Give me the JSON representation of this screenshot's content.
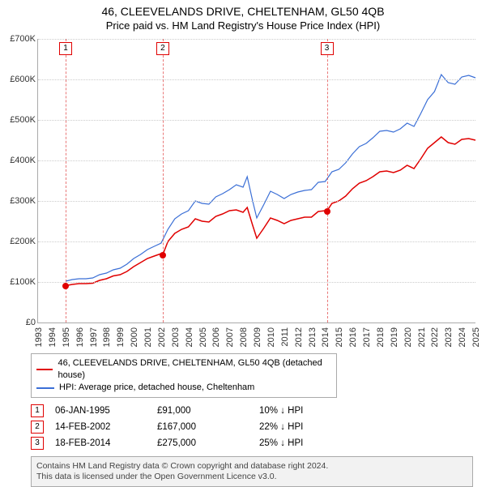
{
  "titles": {
    "line1": "46, CLEEVELANDS DRIVE, CHELTENHAM, GL50 4QB",
    "line2": "Price paid vs. HM Land Registry's House Price Index (HPI)"
  },
  "chart": {
    "type": "line",
    "background_color": "#ffffff",
    "grid_color": "#cccccc",
    "axis_color": "#aaaaaa",
    "title_fontsize": 14,
    "subtitle_fontsize": 13,
    "tick_fontsize": 11,
    "x": {
      "min": 1993,
      "max": 2025,
      "ticks": [
        1993,
        1994,
        1995,
        1996,
        1997,
        1998,
        1999,
        2000,
        2001,
        2002,
        2003,
        2004,
        2005,
        2006,
        2007,
        2008,
        2009,
        2010,
        2011,
        2012,
        2013,
        2014,
        2015,
        2016,
        2017,
        2018,
        2019,
        2020,
        2021,
        2022,
        2023,
        2024,
        2025
      ]
    },
    "y": {
      "min": 0,
      "max": 700,
      "unit_prefix": "£",
      "unit_suffix": "K",
      "ticks": [
        0,
        100,
        200,
        300,
        400,
        500,
        600,
        700
      ]
    },
    "series": [
      {
        "name": "property",
        "label": "46, CLEEVELANDS DRIVE, CHELTENHAM, GL50 4QB (detached house)",
        "color": "#e00000",
        "width": 1.5,
        "data": [
          [
            1995.02,
            91
          ],
          [
            1995.5,
            94
          ],
          [
            1996,
            96
          ],
          [
            1996.5,
            96
          ],
          [
            1997,
            97
          ],
          [
            1997.5,
            104
          ],
          [
            1998,
            108
          ],
          [
            1998.5,
            115
          ],
          [
            1999,
            118
          ],
          [
            1999.5,
            126
          ],
          [
            2000,
            138
          ],
          [
            2000.5,
            148
          ],
          [
            2001,
            158
          ],
          [
            2001.5,
            164
          ],
          [
            2002,
            170
          ],
          [
            2002.12,
            167
          ],
          [
            2002.5,
            200
          ],
          [
            2003,
            220
          ],
          [
            2003.5,
            230
          ],
          [
            2004,
            236
          ],
          [
            2004.5,
            256
          ],
          [
            2005,
            250
          ],
          [
            2005.5,
            248
          ],
          [
            2006,
            262
          ],
          [
            2006.5,
            268
          ],
          [
            2007,
            276
          ],
          [
            2007.5,
            278
          ],
          [
            2008,
            272
          ],
          [
            2008.3,
            284
          ],
          [
            2008.7,
            240
          ],
          [
            2009,
            208
          ],
          [
            2009.5,
            232
          ],
          [
            2010,
            258
          ],
          [
            2010.5,
            252
          ],
          [
            2011,
            244
          ],
          [
            2011.5,
            252
          ],
          [
            2012,
            256
          ],
          [
            2012.5,
            260
          ],
          [
            2013,
            260
          ],
          [
            2013.5,
            274
          ],
          [
            2014,
            276
          ],
          [
            2014.13,
            275
          ],
          [
            2014.5,
            294
          ],
          [
            2015,
            300
          ],
          [
            2015.5,
            312
          ],
          [
            2016,
            330
          ],
          [
            2016.5,
            344
          ],
          [
            2017,
            350
          ],
          [
            2017.5,
            360
          ],
          [
            2018,
            372
          ],
          [
            2018.5,
            374
          ],
          [
            2019,
            370
          ],
          [
            2019.5,
            376
          ],
          [
            2020,
            388
          ],
          [
            2020.5,
            380
          ],
          [
            2021,
            404
          ],
          [
            2021.5,
            430
          ],
          [
            2022,
            444
          ],
          [
            2022.5,
            458
          ],
          [
            2023,
            444
          ],
          [
            2023.5,
            440
          ],
          [
            2024,
            452
          ],
          [
            2024.5,
            454
          ],
          [
            2025,
            450
          ]
        ]
      },
      {
        "name": "hpi",
        "label": "HPI: Average price, detached house, Cheltenham",
        "color": "#3b6fd6",
        "width": 1.2,
        "data": [
          [
            1995.02,
            102
          ],
          [
            1995.5,
            106
          ],
          [
            1996,
            108
          ],
          [
            1996.5,
            108
          ],
          [
            1997,
            110
          ],
          [
            1997.5,
            118
          ],
          [
            1998,
            122
          ],
          [
            1998.5,
            130
          ],
          [
            1999,
            134
          ],
          [
            1999.5,
            144
          ],
          [
            2000,
            158
          ],
          [
            2000.5,
            168
          ],
          [
            2001,
            180
          ],
          [
            2001.5,
            188
          ],
          [
            2002,
            196
          ],
          [
            2002.5,
            230
          ],
          [
            2003,
            256
          ],
          [
            2003.5,
            268
          ],
          [
            2004,
            276
          ],
          [
            2004.5,
            300
          ],
          [
            2005,
            294
          ],
          [
            2005.5,
            292
          ],
          [
            2006,
            310
          ],
          [
            2006.5,
            318
          ],
          [
            2007,
            328
          ],
          [
            2007.5,
            340
          ],
          [
            2008,
            334
          ],
          [
            2008.3,
            360
          ],
          [
            2008.7,
            300
          ],
          [
            2009,
            258
          ],
          [
            2009.5,
            290
          ],
          [
            2010,
            324
          ],
          [
            2010.5,
            316
          ],
          [
            2011,
            306
          ],
          [
            2011.5,
            316
          ],
          [
            2012,
            322
          ],
          [
            2012.5,
            326
          ],
          [
            2013,
            328
          ],
          [
            2013.5,
            346
          ],
          [
            2014,
            348
          ],
          [
            2014.5,
            372
          ],
          [
            2015,
            378
          ],
          [
            2015.5,
            394
          ],
          [
            2016,
            416
          ],
          [
            2016.5,
            434
          ],
          [
            2017,
            442
          ],
          [
            2017.5,
            456
          ],
          [
            2018,
            472
          ],
          [
            2018.5,
            474
          ],
          [
            2019,
            470
          ],
          [
            2019.5,
            478
          ],
          [
            2020,
            492
          ],
          [
            2020.5,
            484
          ],
          [
            2021,
            516
          ],
          [
            2021.5,
            550
          ],
          [
            2022,
            570
          ],
          [
            2022.5,
            612
          ],
          [
            2023,
            592
          ],
          [
            2023.5,
            588
          ],
          [
            2024,
            606
          ],
          [
            2024.5,
            610
          ],
          [
            2025,
            604
          ]
        ]
      }
    ],
    "markers": [
      {
        "n": "1",
        "x": 1995.02
      },
      {
        "n": "2",
        "x": 2002.12
      },
      {
        "n": "3",
        "x": 2014.13
      }
    ],
    "sale_points": {
      "color": "#e00000",
      "radius": 4,
      "items": [
        {
          "x": 1995.02,
          "y": 91
        },
        {
          "x": 2002.12,
          "y": 167
        },
        {
          "x": 2014.13,
          "y": 275
        }
      ]
    }
  },
  "legend": {
    "border_color": "#aaaaaa",
    "fontsize": 11,
    "items": [
      {
        "series": "property"
      },
      {
        "series": "hpi"
      }
    ]
  },
  "sales_table": {
    "fontsize": 11.5,
    "box_border_color": "#e00000",
    "arrow": "↓",
    "rows": [
      {
        "n": "1",
        "date": "06-JAN-1995",
        "price": "£91,000",
        "delta": "10% ↓ HPI"
      },
      {
        "n": "2",
        "date": "14-FEB-2002",
        "price": "£167,000",
        "delta": "22% ↓ HPI"
      },
      {
        "n": "3",
        "date": "18-FEB-2014",
        "price": "£275,000",
        "delta": "25% ↓ HPI"
      }
    ]
  },
  "footer": {
    "background_color": "#f2f2f2",
    "border_color": "#aaaaaa",
    "fontsize": 10.5,
    "line1": "Contains HM Land Registry data © Crown copyright and database right 2024.",
    "line2": "This data is licensed under the Open Government Licence v3.0."
  }
}
